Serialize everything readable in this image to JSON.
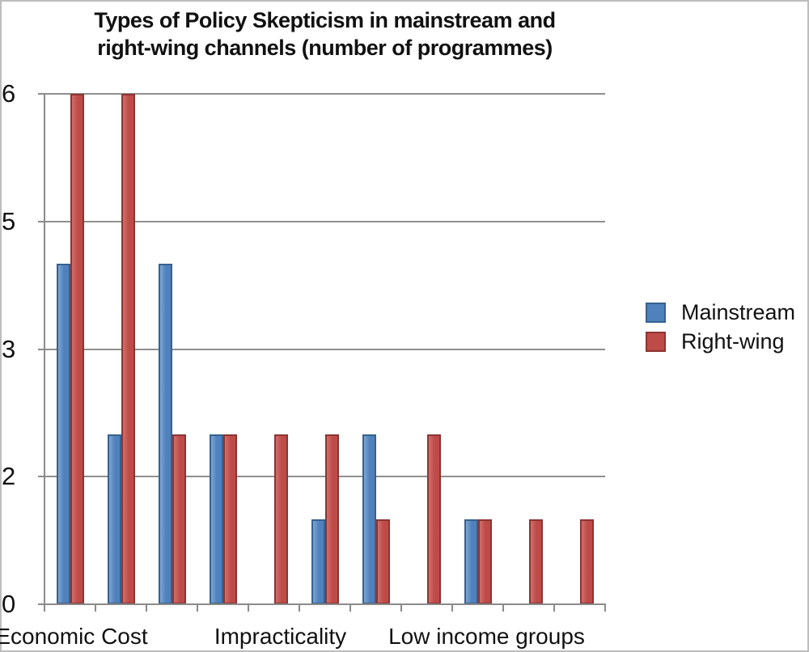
{
  "window": {
    "frame_color": "#bdbdbd",
    "background": "#ffffff"
  },
  "chart_data": {
    "type": "bar",
    "title": "Types of Policy Skepticism in mainstream and right-wing channels (number of programmes)",
    "title_lines": [
      "Types of Policy Skepticism in mainstream and",
      "right-wing channels (number of programmes)"
    ],
    "categories": [
      "Economic Cost",
      "",
      "",
      "",
      "Impracticality",
      "",
      "",
      "",
      "Low income groups",
      "",
      ""
    ],
    "x_tick_labels": [
      {
        "label": "Economic Cost",
        "slot": 0
      },
      {
        "label": "Impracticality",
        "slot": 4
      },
      {
        "label": "Low income groups",
        "slot": 8
      }
    ],
    "series": [
      {
        "name": "Mainstream",
        "fill": "#4f81bd",
        "fill_light": "#7fa5d1",
        "border": "#36618e",
        "values": [
          4,
          2,
          4,
          2,
          0,
          1,
          2,
          0,
          1,
          0,
          0
        ]
      },
      {
        "name": "Right-wing",
        "fill": "#be4b48",
        "fill_light": "#cf6f6c",
        "border": "#8c3432",
        "values": [
          6,
          6,
          2,
          2,
          2,
          2,
          1,
          2,
          1,
          1,
          1
        ]
      }
    ],
    "ylabel": "",
    "xlabel": "",
    "ylim": [
      0,
      6
    ],
    "y_ticks": [
      {
        "v": 0,
        "label": "0"
      },
      {
        "v": 1.5,
        "label": "2"
      },
      {
        "v": 3,
        "label": "3"
      },
      {
        "v": 4.5,
        "label": "5"
      },
      {
        "v": 6,
        "label": "6"
      }
    ],
    "grid": true,
    "axis_color": "#8a8a8a",
    "gridline_color": "#8f8f8f",
    "legend": {
      "position": "right",
      "entries": [
        "Mainstream",
        "Right-wing"
      ]
    }
  }
}
